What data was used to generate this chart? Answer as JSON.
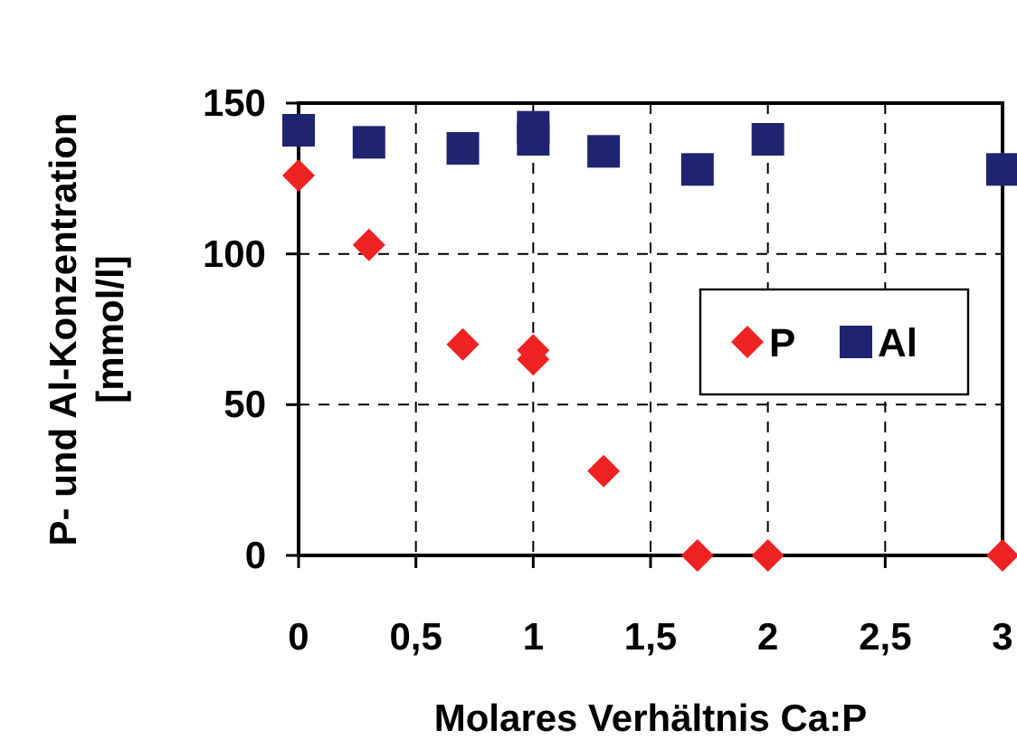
{
  "chart_data": {
    "type": "scatter",
    "xlabel": "Molares Verhältnis Ca:P",
    "ylabel": "P- und Al-Konzentration [mmol/l]",
    "xlim": [
      0,
      3
    ],
    "xticks": [
      {
        "value": 0,
        "label": "0"
      },
      {
        "value": 0.5,
        "label": "0,5"
      },
      {
        "value": 1,
        "label": "1"
      },
      {
        "value": 1.5,
        "label": "1,5"
      },
      {
        "value": 2,
        "label": "2"
      },
      {
        "value": 2.5,
        "label": "2,5"
      },
      {
        "value": 3,
        "label": "3"
      }
    ],
    "ylim": [
      0,
      150
    ],
    "yticks": [
      0,
      50,
      100,
      150
    ],
    "grid": true,
    "legend": "right",
    "series": [
      {
        "name": "P",
        "color": "#ee2222",
        "marker": "diamond",
        "x": [
          0,
          0.3,
          0.7,
          1,
          1,
          1.3,
          1.7,
          2,
          3
        ],
        "values": [
          126,
          103,
          70,
          68,
          65,
          28,
          0,
          0,
          0
        ]
      },
      {
        "name": "Al",
        "color": "#1f2470",
        "marker": "square",
        "x": [
          0,
          0.3,
          0.7,
          1,
          1,
          1.3,
          1.7,
          2,
          3
        ],
        "values": [
          141,
          137,
          135,
          142,
          138,
          134,
          128,
          138,
          128
        ]
      }
    ]
  }
}
